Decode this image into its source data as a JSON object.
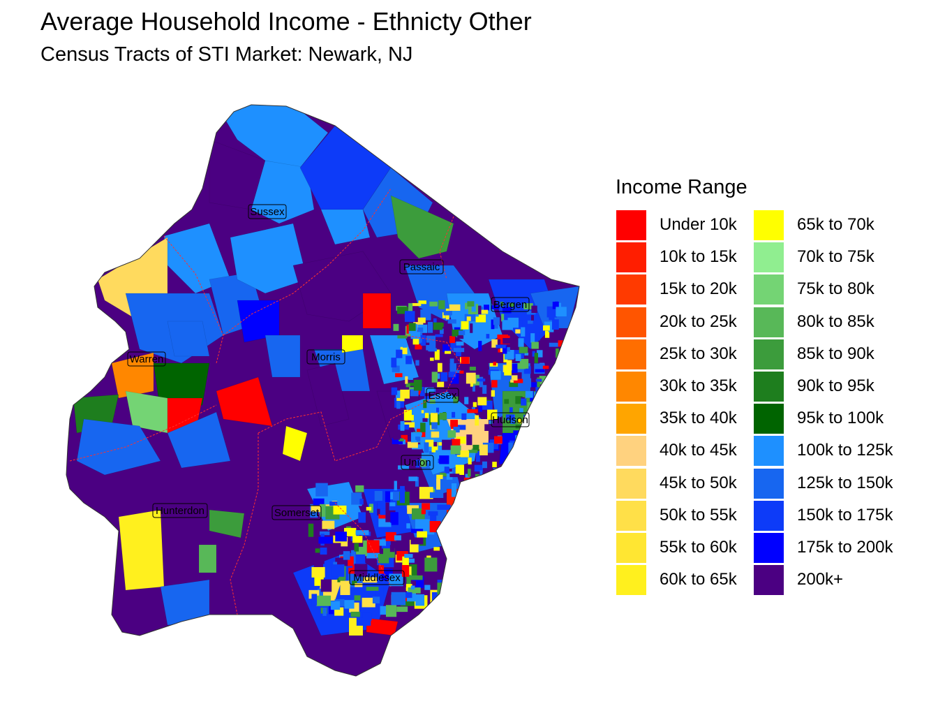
{
  "title": "Average Household Income - Ethnicty Other",
  "subtitle": "Census Tracts of STI Market: Newark, NJ",
  "legend": {
    "title": "Income Range",
    "items": [
      {
        "label": "Under 10k",
        "color": "#FF0000"
      },
      {
        "label": "10k to 15k",
        "color": "#FF1E00"
      },
      {
        "label": "15k to 20k",
        "color": "#FF3A00"
      },
      {
        "label": "20k to 25k",
        "color": "#FF5500"
      },
      {
        "label": "25k to 30k",
        "color": "#FF6E00"
      },
      {
        "label": "30k to 35k",
        "color": "#FF8700"
      },
      {
        "label": "35k to 40k",
        "color": "#FFA500"
      },
      {
        "label": "40k to 45k",
        "color": "#FFD27F"
      },
      {
        "label": "45k to 50k",
        "color": "#FFDA5E"
      },
      {
        "label": "50k to 55k",
        "color": "#FFE048"
      },
      {
        "label": "55k to 60k",
        "color": "#FFE632"
      },
      {
        "label": "60k to 65k",
        "color": "#FFF01E"
      },
      {
        "label": "65k to 70k",
        "color": "#FFFF00"
      },
      {
        "label": "70k to 75k",
        "color": "#90EE90"
      },
      {
        "label": "75k to 80k",
        "color": "#74D474"
      },
      {
        "label": "80k to 85k",
        "color": "#58B858"
      },
      {
        "label": "85k to 90k",
        "color": "#3C9C3C"
      },
      {
        "label": "90k to 95k",
        "color": "#1E7E1E"
      },
      {
        "label": "95k to 100k",
        "color": "#006400"
      },
      {
        "label": "100k to 125k",
        "color": "#1E90FF"
      },
      {
        "label": "125k to 150k",
        "color": "#1766F0"
      },
      {
        "label": "150k to 175k",
        "color": "#0D3BF8"
      },
      {
        "label": "175k to 200k",
        "color": "#0000FF"
      },
      {
        "label": "200k+",
        "color": "#4B0082"
      }
    ]
  },
  "counties": [
    {
      "name": "Sussex"
    },
    {
      "name": "Passaic"
    },
    {
      "name": "Bergen"
    },
    {
      "name": "Warren"
    },
    {
      "name": "Morris"
    },
    {
      "name": "Essex"
    },
    {
      "name": "Hudson"
    },
    {
      "name": "Union"
    },
    {
      "name": "Hunterdon"
    },
    {
      "name": "Somerset"
    },
    {
      "name": "Middlesex"
    }
  ],
  "colors": {
    "background": "#FFFFFF",
    "county_border": "#FF3030",
    "label_box": "#000000"
  }
}
